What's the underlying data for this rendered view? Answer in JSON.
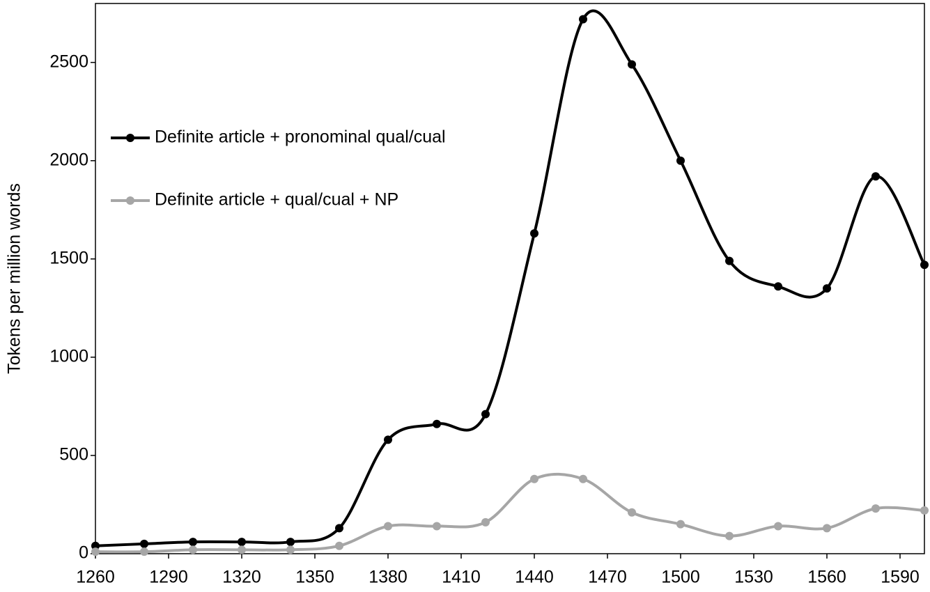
{
  "chart_data": {
    "type": "line",
    "y_label": "Tokens per million words",
    "x": [
      1260,
      1280,
      1300,
      1320,
      1340,
      1360,
      1380,
      1400,
      1420,
      1440,
      1460,
      1480,
      1500,
      1520,
      1540,
      1560,
      1580,
      1600
    ],
    "series": [
      {
        "name": "Definite article + pronominal qual/cual",
        "color": "#000000",
        "values": [
          40,
          50,
          60,
          60,
          60,
          130,
          580,
          660,
          710,
          1630,
          2720,
          2490,
          2000,
          1490,
          1360,
          1350,
          1920,
          1470
        ]
      },
      {
        "name": "Definite article + qual/cual + NP",
        "color": "#a6a6a6",
        "values": [
          10,
          10,
          20,
          20,
          20,
          40,
          140,
          140,
          160,
          380,
          380,
          210,
          150,
          90,
          140,
          130,
          230,
          220
        ]
      }
    ],
    "xlim": [
      1260,
      1600
    ],
    "xticks": [
      1260,
      1290,
      1320,
      1350,
      1380,
      1410,
      1440,
      1470,
      1500,
      1530,
      1560,
      1590
    ],
    "ylim": [
      0,
      2800
    ],
    "yticks": [
      0,
      500,
      1000,
      1500,
      2000,
      2500
    ],
    "smooth": true,
    "legend": "upper left"
  }
}
